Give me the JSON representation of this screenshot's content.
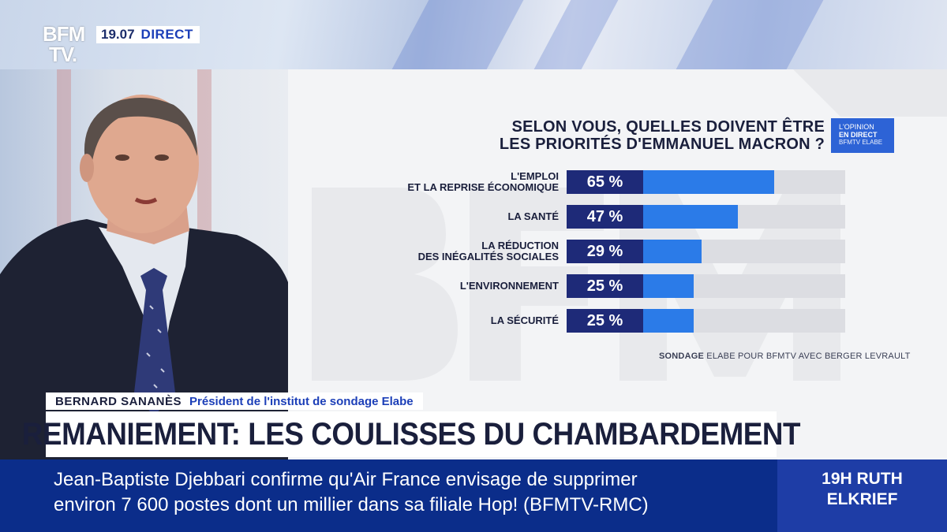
{
  "channel": {
    "logo_line1": "BFM",
    "logo_line2": "TV.",
    "time": "19.07",
    "live_label": "DIRECT"
  },
  "badge": {
    "line1": "L'OPINION",
    "line2": "EN DIRECT",
    "line3": "BFMTV ELABE"
  },
  "chart_data": {
    "type": "bar",
    "title_lines": [
      "SELON VOUS, QUELLES DOIVENT ÊTRE",
      "LES PRIORITÉS D'EMMANUEL MACRON ?"
    ],
    "categories": [
      [
        "L'EMPLOI",
        "ET LA REPRISE ÉCONOMIQUE"
      ],
      [
        "LA SANTÉ"
      ],
      [
        "LA RÉDUCTION",
        "DES INÉGALITÉS SOCIALES"
      ],
      [
        "L'ENVIRONNEMENT"
      ],
      [
        "LA SÉCURITÉ"
      ]
    ],
    "values": [
      65,
      47,
      29,
      25,
      25
    ],
    "value_labels": [
      "65 %",
      "47 %",
      "29 %",
      "25 %",
      "25 %"
    ],
    "ylim": [
      0,
      100
    ],
    "orientation": "horizontal",
    "colors": {
      "fill": "#2b7be8",
      "track": "#dcdde2",
      "label_box": "#1e2a78"
    },
    "source": {
      "prefix": "SONDAGE",
      "text": " ELABE POUR BFMTV AVEC BERGER LEVRAULT"
    }
  },
  "lower_third": {
    "name": "BERNARD SANANÈS",
    "role": "Président de l'institut de sondage Elabe",
    "headline": "REMANIEMENT: LES COULISSES DU CHAMBARDEMENT"
  },
  "ticker": {
    "line1": "Jean-Baptiste Djebbari confirme qu'Air France envisage de supprimer",
    "line2": "environ 7 600 postes dont un millier dans sa filiale Hop! (BFMTV-RMC)"
  },
  "program": {
    "line1": "19H RUTH",
    "line2": "ELKRIEF"
  }
}
